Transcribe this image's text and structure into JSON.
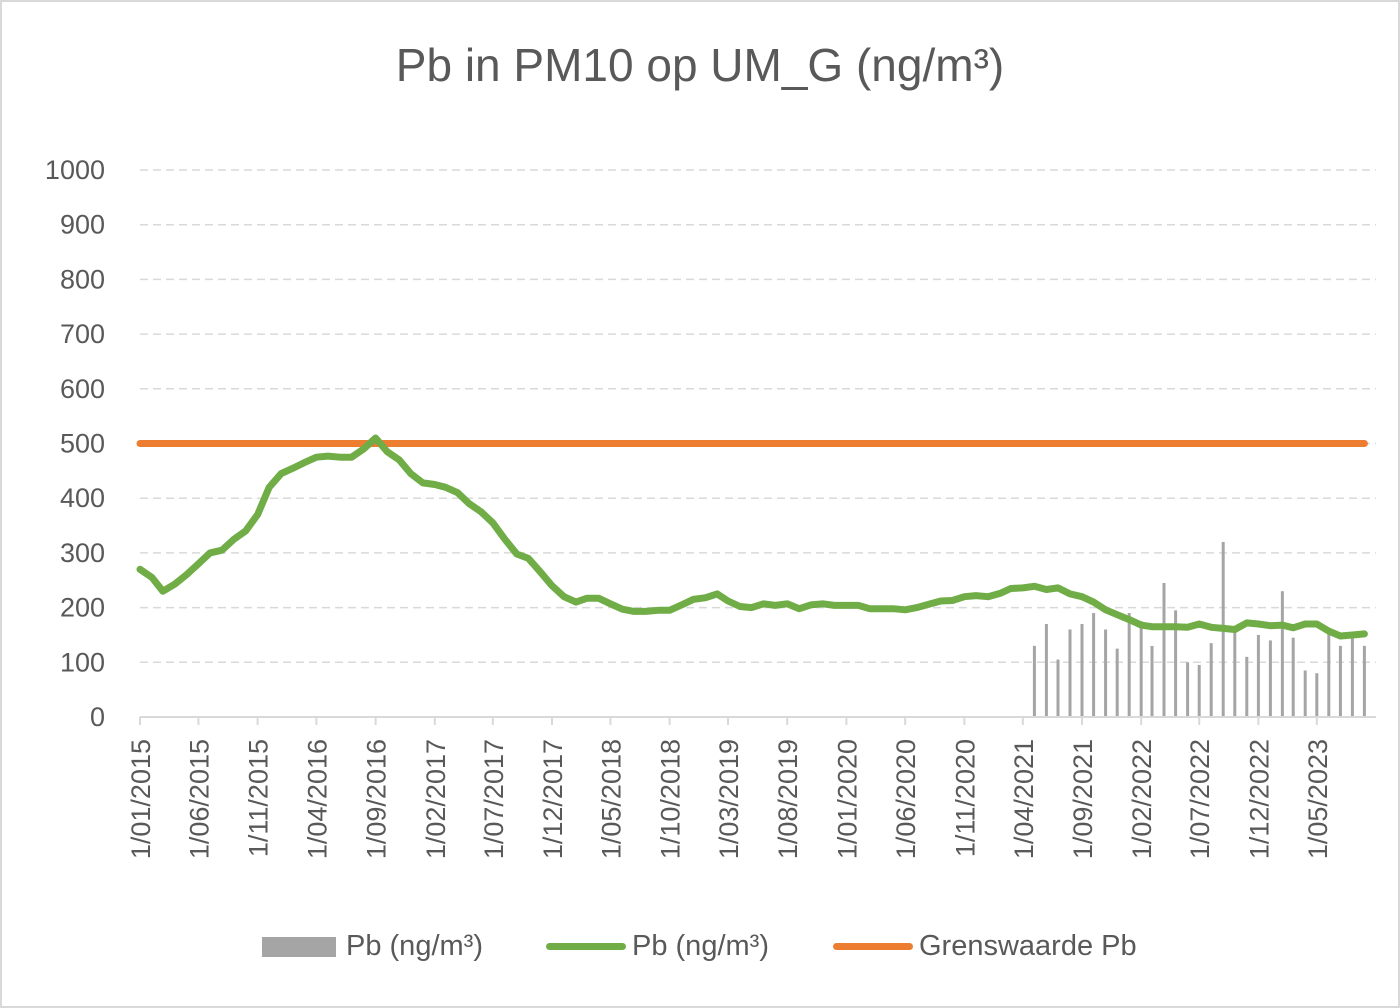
{
  "chart_data": {
    "type": "bar+line",
    "title": "Pb in PM10 op UM_G (ng/m³)",
    "ylim": [
      0,
      1000
    ],
    "yticks": [
      0,
      100,
      200,
      300,
      400,
      500,
      600,
      700,
      800,
      900,
      1000
    ],
    "grid": true,
    "legend_position": "bottom",
    "x_tick_labels": [
      "1/01/2015",
      "1/06/2015",
      "1/11/2015",
      "1/04/2016",
      "1/09/2016",
      "1/02/2017",
      "1/07/2017",
      "1/12/2017",
      "1/05/2018",
      "1/10/2018",
      "1/03/2019",
      "1/08/2019",
      "1/01/2020",
      "1/06/2020",
      "1/11/2020",
      "1/04/2021",
      "1/09/2021",
      "1/02/2022",
      "1/07/2022",
      "1/12/2022",
      "1/05/2023"
    ],
    "series": [
      {
        "name": "Pb (ng/m³)",
        "kind": "bar",
        "color": "#a5a5a5",
        "x": [
          "2021-05",
          "2021-06",
          "2021-07",
          "2021-08",
          "2021-09",
          "2021-10",
          "2021-11",
          "2021-12",
          "2022-01",
          "2022-02",
          "2022-03",
          "2022-04",
          "2022-05",
          "2022-06",
          "2022-07",
          "2022-08",
          "2022-09",
          "2022-10",
          "2022-11",
          "2022-12",
          "2023-01",
          "2023-02",
          "2023-03",
          "2023-04",
          "2023-05",
          "2023-06",
          "2023-07",
          "2023-08",
          "2023-09"
        ],
        "values": [
          130,
          170,
          105,
          160,
          170,
          190,
          160,
          125,
          190,
          175,
          130,
          245,
          195,
          100,
          95,
          135,
          320,
          165,
          110,
          150,
          140,
          230,
          145,
          85,
          80,
          155,
          130,
          150,
          130
        ]
      },
      {
        "name": "Pb (ng/m³)",
        "kind": "line",
        "color": "#70ad47",
        "x": [
          "2015-01",
          "2015-02",
          "2015-03",
          "2015-04",
          "2015-05",
          "2015-06",
          "2015-07",
          "2015-08",
          "2015-09",
          "2015-10",
          "2015-11",
          "2015-12",
          "2016-01",
          "2016-02",
          "2016-03",
          "2016-04",
          "2016-05",
          "2016-06",
          "2016-07",
          "2016-08",
          "2016-09",
          "2016-10",
          "2016-11",
          "2016-12",
          "2017-01",
          "2017-02",
          "2017-03",
          "2017-04",
          "2017-05",
          "2017-06",
          "2017-07",
          "2017-08",
          "2017-09",
          "2017-10",
          "2017-11",
          "2017-12",
          "2018-01",
          "2018-02",
          "2018-03",
          "2018-04",
          "2018-05",
          "2018-06",
          "2018-07",
          "2018-08",
          "2018-09",
          "2018-10",
          "2018-11",
          "2018-12",
          "2019-01",
          "2019-02",
          "2019-03",
          "2019-04",
          "2019-05",
          "2019-06",
          "2019-07",
          "2019-08",
          "2019-09",
          "2019-10",
          "2019-11",
          "2019-12",
          "2020-01",
          "2020-02",
          "2020-03",
          "2020-04",
          "2020-05",
          "2020-06",
          "2020-07",
          "2020-08",
          "2020-09",
          "2020-10",
          "2020-11",
          "2020-12",
          "2021-01",
          "2021-02",
          "2021-03",
          "2021-04",
          "2021-05",
          "2021-06",
          "2021-07",
          "2021-08",
          "2021-09",
          "2021-10",
          "2021-11",
          "2021-12",
          "2022-01",
          "2022-02",
          "2022-03",
          "2022-04",
          "2022-05",
          "2022-06",
          "2022-07",
          "2022-08",
          "2022-09",
          "2022-10",
          "2022-11",
          "2022-12",
          "2023-01",
          "2023-02",
          "2023-03",
          "2023-04",
          "2023-05",
          "2023-06",
          "2023-07",
          "2023-08",
          "2023-09"
        ],
        "values": [
          270,
          255,
          230,
          243,
          260,
          280,
          300,
          305,
          325,
          340,
          370,
          420,
          445,
          455,
          465,
          475,
          477,
          475,
          475,
          490,
          510,
          485,
          470,
          445,
          428,
          425,
          420,
          410,
          390,
          375,
          355,
          325,
          298,
          290,
          265,
          240,
          220,
          210,
          217,
          217,
          207,
          197,
          193,
          193,
          195,
          195,
          205,
          215,
          218,
          225,
          212,
          202,
          200,
          207,
          204,
          207,
          198,
          205,
          207,
          204,
          204,
          204,
          198,
          198,
          198,
          196,
          200,
          206,
          212,
          213,
          220,
          222,
          220,
          226,
          235,
          236,
          239,
          233,
          236,
          225,
          220,
          210,
          196,
          187,
          178,
          168,
          165,
          165,
          165,
          164,
          170,
          164,
          162,
          160,
          172,
          170,
          167,
          168,
          163,
          170,
          170,
          157,
          148,
          150,
          152
        ]
      },
      {
        "name": "Grenswaarde Pb",
        "kind": "line",
        "color": "#ed7d31",
        "x": [
          "2015-01",
          "2023-09"
        ],
        "values": [
          500,
          500
        ]
      }
    ]
  },
  "legend": {
    "items": [
      "Pb (ng/m³)",
      "Pb (ng/m³)",
      "Grenswaarde Pb"
    ]
  }
}
